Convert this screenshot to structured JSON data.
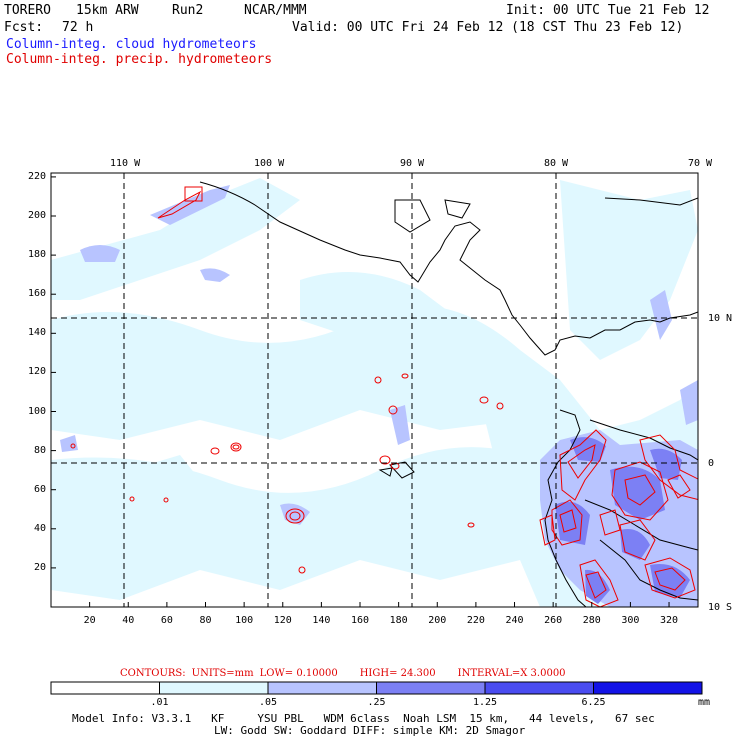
{
  "header": {
    "model": "TORERO",
    "grid": "15km ARW",
    "run": "Run2",
    "org": "NCAR/MMM",
    "init": "Init: 00 UTC Tue 21 Feb 12",
    "fcst_label": "Fcst:",
    "fcst_value": "72 h",
    "valid": "Valid: 00 UTC Fri 24 Feb 12 (18 CST Thu 23 Feb 12)"
  },
  "fields": {
    "shaded": "Column-integ. cloud hydrometeors",
    "contoured": "Column-integ. precip. hydrometeors"
  },
  "map": {
    "top_lon_labels": [
      "110 W",
      "100 W",
      "90 W",
      "80 W",
      "70 W"
    ],
    "right_lat_labels": [
      "10 N",
      "0",
      "10 S"
    ],
    "x_ticks": [
      "20",
      "40",
      "60",
      "80",
      "100",
      "120",
      "140",
      "160",
      "180",
      "200",
      "220",
      "240",
      "260",
      "280",
      "300",
      "320"
    ],
    "y_ticks": [
      "20",
      "40",
      "60",
      "80",
      "100",
      "120",
      "140",
      "160",
      "180",
      "200",
      "220"
    ],
    "x_range": [
      0,
      335
    ],
    "y_range": [
      0,
      222
    ],
    "colors": {
      "cloud_light": "#e0f8ff",
      "cloud_mid": "#b8c4ff",
      "cloud_dark": "#7c80f4",
      "precip_contour": "#ee0000",
      "coast": "#000000"
    }
  },
  "contours": {
    "label": "CONTOURS:",
    "units": "UNITS=mm",
    "low": "LOW= 0.10000",
    "high": "HIGH= 24.300",
    "interval": "INTERVAL=X 3.0000"
  },
  "colorbar": {
    "labels": [
      ".01",
      ".05",
      ".25",
      "1.25",
      "6.25"
    ],
    "unit": "mm",
    "colors": [
      "#ffffff",
      "#e0f8ff",
      "#b8c4ff",
      "#7c80f4",
      "#4a4cf0",
      "#1212e6"
    ]
  },
  "model_info": {
    "line1": "Model Info: V3.3.1   KF     YSU PBL   WDM 6class  Noah LSM  15 km,   44 levels,   67 sec",
    "line2": "LW: Godd SW: Goddard DIFF: simple KM: 2D Smagor"
  }
}
